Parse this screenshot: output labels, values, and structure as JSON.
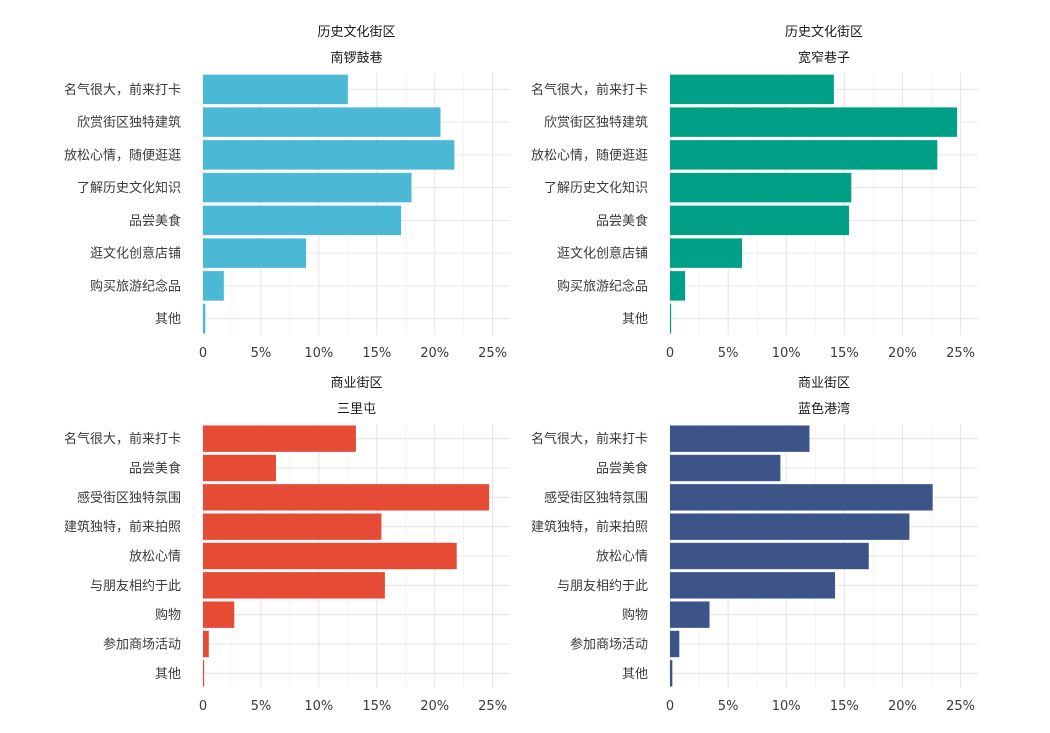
{
  "chart_data": [
    {
      "type": "bar",
      "orientation": "horizontal",
      "title": "历史文化街区",
      "subtitle": "南锣鼓巷",
      "color": "#4BB9D6",
      "categories": [
        "名气很大，前来打卡",
        "欣赏街区独特建筑",
        "放松心情，随便逛逛",
        "了解历史文化知识",
        "品尝美食",
        "逛文化创意店铺",
        "购买旅游纪念品",
        "其他"
      ],
      "values": [
        12.5,
        20.5,
        21.7,
        18.0,
        17.1,
        8.9,
        1.8,
        0.2
      ],
      "xlim": [
        0,
        26.5
      ],
      "xticks": [
        0,
        5,
        10,
        15,
        20,
        25
      ],
      "xtick_labels": [
        "0",
        "5%",
        "10%",
        "15%",
        "20%",
        "25%"
      ],
      "grid": true
    },
    {
      "type": "bar",
      "orientation": "horizontal",
      "title": "历史文化街区",
      "subtitle": "宽窄巷子",
      "color": "#00A086",
      "categories": [
        "名气很大，前来打卡",
        "欣赏街区独特建筑",
        "放松心情，随便逛逛",
        "了解历史文化知识",
        "品尝美食",
        "逛文化创意店铺",
        "购买旅游纪念品",
        "其他"
      ],
      "values": [
        14.1,
        24.7,
        23.0,
        15.6,
        15.4,
        6.2,
        1.3,
        0.1
      ],
      "xlim": [
        0,
        26.5
      ],
      "xticks": [
        0,
        5,
        10,
        15,
        20,
        25
      ],
      "xtick_labels": [
        "0",
        "5%",
        "10%",
        "15%",
        "20%",
        "25%"
      ],
      "grid": true
    },
    {
      "type": "bar",
      "orientation": "horizontal",
      "title": "商业街区",
      "subtitle": "三里屯",
      "color": "#E64B35",
      "categories": [
        "名气很大，前来打卡",
        "品尝美食",
        "感受街区独特氛围",
        "建筑独特，前来拍照",
        "放松心情",
        "与朋友相约于此",
        "购物",
        "参加商场活动",
        "其他"
      ],
      "values": [
        13.2,
        6.3,
        24.7,
        15.4,
        21.9,
        15.7,
        2.7,
        0.5,
        0.1
      ],
      "xlim": [
        0,
        26.5
      ],
      "xticks": [
        0,
        5,
        10,
        15,
        20,
        25
      ],
      "xtick_labels": [
        "0",
        "5%",
        "10%",
        "15%",
        "20%",
        "25%"
      ],
      "grid": true
    },
    {
      "type": "bar",
      "orientation": "horizontal",
      "title": "商业街区",
      "subtitle": "蓝色港湾",
      "color": "#3C5488",
      "categories": [
        "名气很大，前来打卡",
        "品尝美食",
        "感受街区独特氛围",
        "建筑独特，前来拍照",
        "放松心情",
        "与朋友相约于此",
        "购物",
        "参加商场活动",
        "其他"
      ],
      "values": [
        12.0,
        9.5,
        22.6,
        20.6,
        17.1,
        14.2,
        3.4,
        0.8,
        0.2
      ],
      "xlim": [
        0,
        26.5
      ],
      "xticks": [
        0,
        5,
        10,
        15,
        20,
        25
      ],
      "xtick_labels": [
        "0",
        "5%",
        "10%",
        "15%",
        "20%",
        "25%"
      ],
      "grid": true
    }
  ]
}
